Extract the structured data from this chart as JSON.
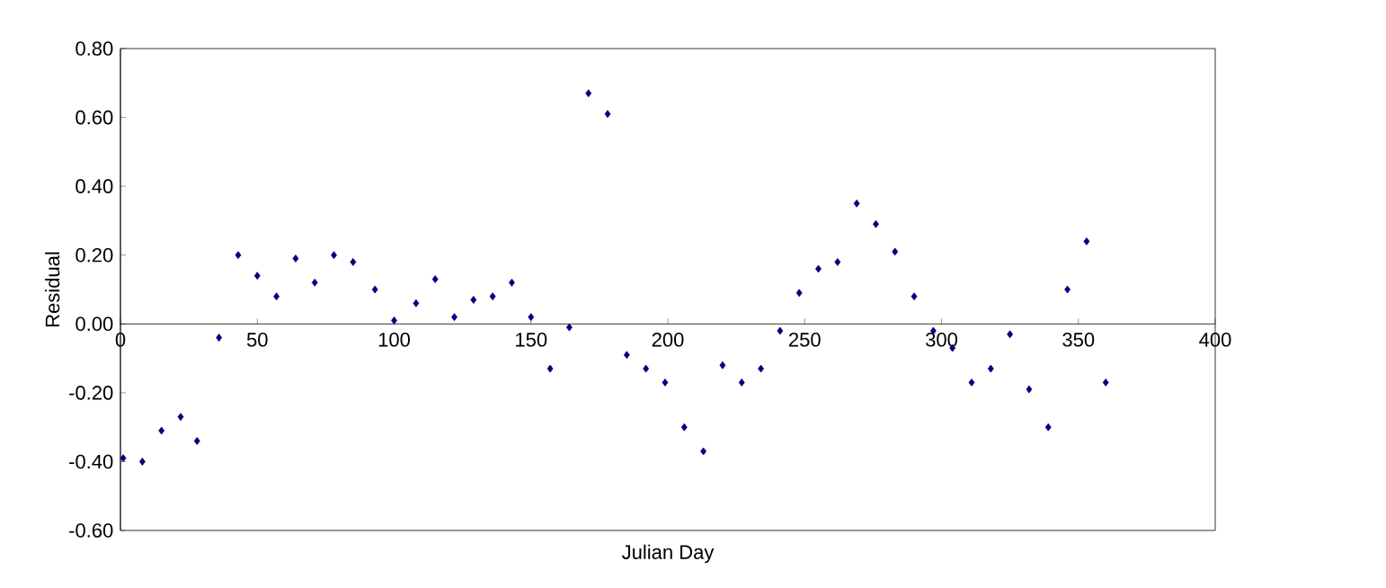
{
  "chart_data": {
    "type": "scatter",
    "xlabel": "Julian Day",
    "ylabel": "Residual",
    "x": [
      1,
      8,
      15,
      22,
      28,
      36,
      43,
      50,
      57,
      64,
      71,
      78,
      85,
      93,
      100,
      108,
      115,
      122,
      129,
      136,
      143,
      150,
      157,
      164,
      171,
      178,
      185,
      192,
      199,
      206,
      213,
      220,
      227,
      234,
      241,
      248,
      255,
      262,
      269,
      276,
      283,
      290,
      297,
      304,
      311,
      318,
      325,
      332,
      339,
      346,
      353,
      360
    ],
    "values": [
      -0.39,
      -0.4,
      -0.31,
      -0.27,
      -0.34,
      -0.04,
      0.2,
      0.14,
      0.08,
      0.19,
      0.12,
      0.2,
      0.18,
      0.1,
      0.01,
      0.06,
      0.13,
      0.02,
      0.07,
      0.08,
      0.12,
      0.02,
      -0.13,
      -0.01,
      0.67,
      0.61,
      -0.09,
      -0.13,
      -0.17,
      -0.3,
      -0.37,
      -0.12,
      -0.17,
      -0.13,
      -0.02,
      0.09,
      0.16,
      0.18,
      0.35,
      0.29,
      0.21,
      0.08,
      -0.02,
      -0.07,
      -0.17,
      -0.13,
      -0.03,
      -0.19,
      -0.3,
      0.1,
      0.24,
      -0.17
    ],
    "color": "#000080",
    "marker": "diamond",
    "xlim": [
      0,
      400
    ],
    "ylim": [
      -0.6,
      0.8
    ],
    "xticks": [
      0,
      50,
      100,
      150,
      200,
      250,
      300,
      350,
      400
    ],
    "yticks": [
      {
        "value": -0.6,
        "label": "-0.60"
      },
      {
        "value": -0.4,
        "label": "-0.40"
      },
      {
        "value": -0.2,
        "label": "-0.20"
      },
      {
        "value": 0,
        "label": "0.00"
      },
      {
        "value": 0.2,
        "label": "0.20"
      },
      {
        "value": 0.4,
        "label": "0.40"
      },
      {
        "value": 0.6,
        "label": "0.60"
      },
      {
        "value": 0.8,
        "label": "0.80"
      }
    ]
  }
}
